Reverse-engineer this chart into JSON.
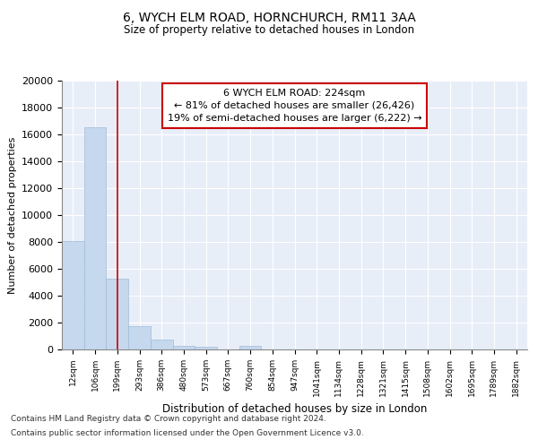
{
  "title_line1": "6, WYCH ELM ROAD, HORNCHURCH, RM11 3AA",
  "title_line2": "Size of property relative to detached houses in London",
  "xlabel": "Distribution of detached houses by size in London",
  "ylabel": "Number of detached properties",
  "bar_labels": [
    "12sqm",
    "106sqm",
    "199sqm",
    "293sqm",
    "386sqm",
    "480sqm",
    "573sqm",
    "667sqm",
    "760sqm",
    "854sqm",
    "947sqm",
    "1041sqm",
    "1134sqm",
    "1228sqm",
    "1321sqm",
    "1415sqm",
    "1508sqm",
    "1602sqm",
    "1695sqm",
    "1789sqm",
    "1882sqm"
  ],
  "bar_values": [
    8100,
    16500,
    5250,
    1750,
    750,
    300,
    200,
    0,
    300,
    0,
    0,
    0,
    0,
    0,
    0,
    0,
    0,
    0,
    0,
    0,
    0
  ],
  "bar_color": "#c5d8ee",
  "bar_edgecolor": "#a0bcd8",
  "vline_x": 2.0,
  "vline_color": "#cc0000",
  "annotation_text": "6 WYCH ELM ROAD: 224sqm\n← 81% of detached houses are smaller (26,426)\n19% of semi-detached houses are larger (6,222) →",
  "annotation_box_color": "#ffffff",
  "annotation_box_edgecolor": "#cc0000",
  "footnote_line1": "Contains HM Land Registry data © Crown copyright and database right 2024.",
  "footnote_line2": "Contains public sector information licensed under the Open Government Licence v3.0.",
  "ylim": [
    0,
    20000
  ],
  "yticks": [
    0,
    2000,
    4000,
    6000,
    8000,
    10000,
    12000,
    14000,
    16000,
    18000,
    20000
  ],
  "background_color": "#ffffff",
  "plot_bg_color": "#e8eef8",
  "grid_color": "#ffffff"
}
